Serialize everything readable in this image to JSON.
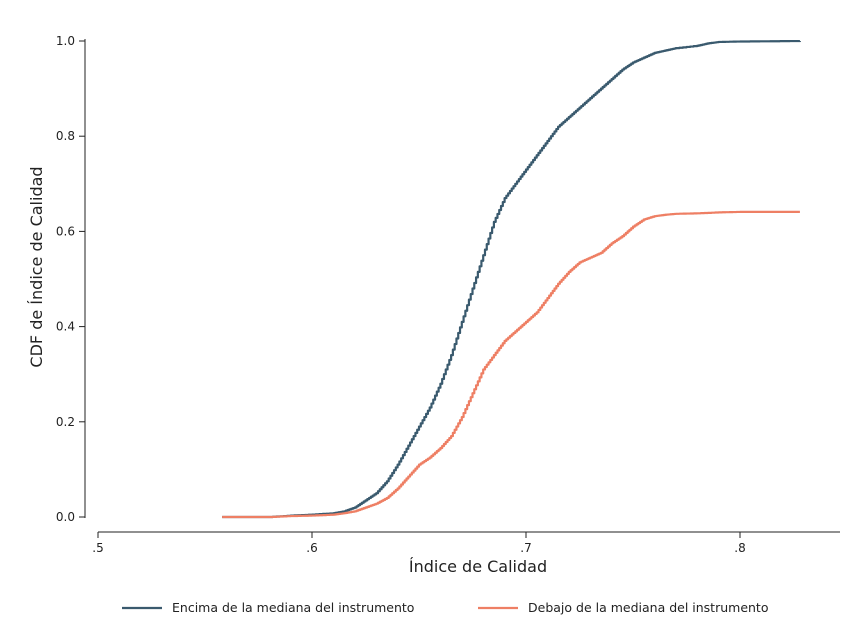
{
  "chart_data": {
    "type": "line",
    "title": "",
    "xlabel": "Índice de Calidad",
    "ylabel": "CDF de Índice de Calidad",
    "xlim": [
      0.5,
      0.828
    ],
    "ylim": [
      0,
      1
    ],
    "xticks": [
      0.5,
      0.6,
      0.7,
      0.8
    ],
    "xtick_labels": [
      ".5",
      ".6",
      ".7",
      ".8"
    ],
    "yticks": [
      0,
      0.2,
      0.4,
      0.6,
      0.8,
      1.0
    ],
    "ytick_labels": [
      "0.0",
      "0.2",
      "0.4",
      "0.6",
      "0.8",
      "1.0"
    ],
    "grid": false,
    "legend_position": "bottom",
    "series": [
      {
        "name": "Encima de la mediana del instrumento",
        "color": "#3a5a6e",
        "x": [
          0.558,
          0.58,
          0.59,
          0.6,
          0.61,
          0.615,
          0.62,
          0.625,
          0.63,
          0.635,
          0.64,
          0.645,
          0.65,
          0.655,
          0.66,
          0.665,
          0.67,
          0.675,
          0.68,
          0.685,
          0.69,
          0.695,
          0.7,
          0.705,
          0.71,
          0.715,
          0.72,
          0.725,
          0.73,
          0.735,
          0.74,
          0.745,
          0.75,
          0.755,
          0.76,
          0.765,
          0.77,
          0.78,
          0.785,
          0.79,
          0.8,
          0.828
        ],
        "y": [
          0.0,
          0.0,
          0.003,
          0.005,
          0.008,
          0.012,
          0.02,
          0.035,
          0.05,
          0.075,
          0.11,
          0.15,
          0.19,
          0.23,
          0.28,
          0.34,
          0.41,
          0.48,
          0.55,
          0.62,
          0.67,
          0.7,
          0.73,
          0.76,
          0.79,
          0.82,
          0.84,
          0.86,
          0.88,
          0.9,
          0.92,
          0.94,
          0.955,
          0.965,
          0.975,
          0.98,
          0.985,
          0.99,
          0.995,
          0.998,
          0.999,
          1.0
        ]
      },
      {
        "name": "Debajo de la mediana del instrumento",
        "color": "#ee7f64",
        "x": [
          0.558,
          0.58,
          0.59,
          0.6,
          0.61,
          0.615,
          0.62,
          0.625,
          0.63,
          0.635,
          0.64,
          0.645,
          0.65,
          0.655,
          0.66,
          0.665,
          0.67,
          0.675,
          0.68,
          0.685,
          0.69,
          0.695,
          0.7,
          0.705,
          0.71,
          0.715,
          0.72,
          0.725,
          0.73,
          0.735,
          0.74,
          0.745,
          0.75,
          0.755,
          0.76,
          0.765,
          0.77,
          0.78,
          0.79,
          0.8,
          0.828
        ],
        "y": [
          0.0,
          0.0,
          0.002,
          0.003,
          0.005,
          0.008,
          0.012,
          0.02,
          0.028,
          0.04,
          0.06,
          0.085,
          0.11,
          0.125,
          0.145,
          0.17,
          0.21,
          0.26,
          0.31,
          0.34,
          0.37,
          0.39,
          0.41,
          0.43,
          0.46,
          0.49,
          0.515,
          0.535,
          0.545,
          0.555,
          0.575,
          0.59,
          0.61,
          0.625,
          0.632,
          0.635,
          0.637,
          0.638,
          0.64,
          0.641,
          0.641
        ]
      }
    ]
  }
}
